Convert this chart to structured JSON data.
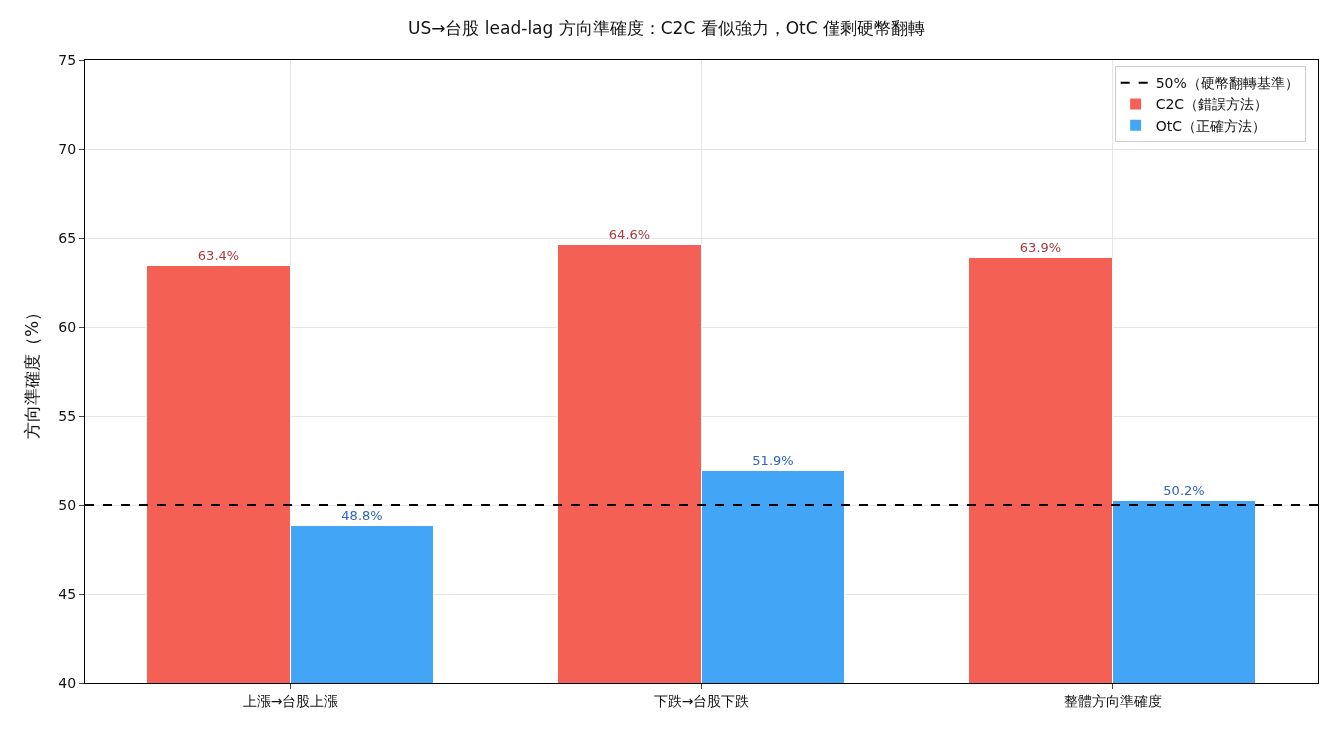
{
  "chart_data": {
    "type": "bar",
    "title": "US→台股 lead-lag 方向準確度：C2C 看似強力，OtC 僅剩硬幣翻轉",
    "ylabel": "方向準確度（%）",
    "categories": [
      "上漲→台股上漲",
      "下跌→台股下跌",
      "整體方向準確度"
    ],
    "series": [
      {
        "name": "C2C（錯誤方法）",
        "color": "#f56055",
        "values": [
          63.4,
          64.6,
          63.9
        ],
        "value_labels": [
          "63.4%",
          "64.6%",
          "63.9%"
        ]
      },
      {
        "name": "OtC（正確方法）",
        "color": "#42a5f5",
        "values": [
          48.8,
          51.9,
          50.2
        ],
        "value_labels": [
          "48.8%",
          "51.9%",
          "50.2%"
        ]
      }
    ],
    "ylim": [
      40,
      75
    ],
    "yticks": [
      40,
      45,
      50,
      55,
      60,
      65,
      70,
      75
    ],
    "ref_lines": [
      {
        "axis": "y",
        "value": 50,
        "label": "50%（硬幣翻轉基準）",
        "color": "#000000",
        "line_style": "dashed"
      }
    ],
    "grid": true,
    "legend": "top right"
  }
}
